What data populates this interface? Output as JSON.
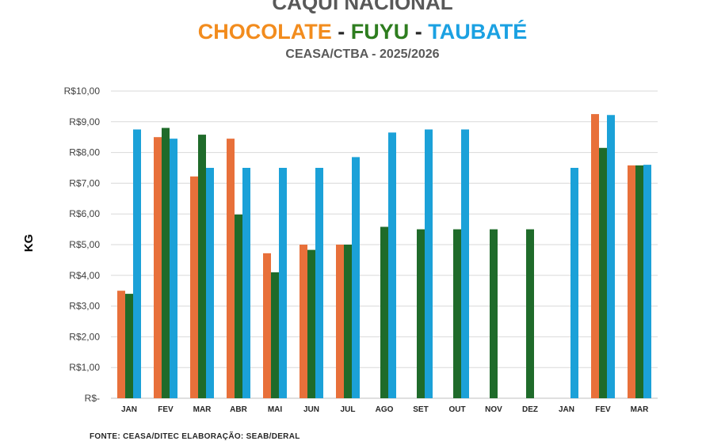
{
  "header": {
    "title": "CAQUI NACIONAL",
    "subtitle_parts": [
      {
        "text": "CHOCOLATE",
        "color": "#F28C1E"
      },
      {
        "text": " - ",
        "color": "#262626"
      },
      {
        "text": "FUYU",
        "color": "#2E7D1F"
      },
      {
        "text": " - ",
        "color": "#262626"
      },
      {
        "text": "TAUBATÉ",
        "color": "#1BA1E2"
      }
    ],
    "subtitle2": "CEASA/CTBA - 2025/2026"
  },
  "source_note": "FONTE: CEASA/DITEC ELABORAÇÃO: SEAB/DERAL",
  "chart_data": {
    "type": "bar",
    "ylabel": "KG",
    "ylim": [
      0,
      10
    ],
    "y_ticks": [
      "R$-",
      "R$1,00",
      "R$2,00",
      "R$3,00",
      "R$4,00",
      "R$5,00",
      "R$6,00",
      "R$7,00",
      "R$8,00",
      "R$9,00",
      "R$10,00"
    ],
    "grid": true,
    "categories": [
      "JAN",
      "FEV",
      "MAR",
      "ABR",
      "MAI",
      "JUN",
      "JUL",
      "AGO",
      "SET",
      "OUT",
      "NOV",
      "DEZ",
      "JAN",
      "FEV",
      "MAR"
    ],
    "series": [
      {
        "color": "#E8703A",
        "values": [
          3.5,
          8.5,
          7.22,
          8.45,
          4.72,
          5.0,
          5.0,
          null,
          null,
          null,
          null,
          null,
          null,
          9.25,
          7.58
        ]
      },
      {
        "color": "#1F6B2A",
        "values": [
          3.4,
          8.8,
          8.58,
          5.98,
          4.1,
          4.83,
          5.0,
          5.58,
          5.5,
          5.5,
          5.5,
          5.5,
          null,
          8.15,
          7.58
        ]
      },
      {
        "color": "#1BA1D8",
        "values": [
          8.75,
          8.45,
          7.5,
          7.5,
          7.5,
          7.5,
          7.85,
          8.65,
          8.75,
          8.75,
          null,
          null,
          7.5,
          9.22,
          7.6
        ]
      }
    ]
  }
}
